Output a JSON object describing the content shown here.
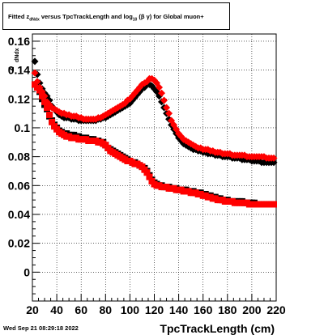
{
  "title": {
    "prefix": "Fitted  z",
    "sub1": "dNdx",
    "middle": " versus TpcTrackLength and log",
    "sub2": "10",
    "suffix": " (β γ) for Global muon+"
  },
  "timestamp": "Wed Sep 21 08:29:18 2022",
  "chart_data": {
    "type": "scatter",
    "title": "Fitted z_dNdx versus TpcTrackLength and log10(β γ) for Global muon+",
    "xlabel": "TpcTrackLength (cm)",
    "ylabel": "z_dNdx",
    "ylabel_main": "z",
    "ylabel_sub": "dNdx",
    "xlim": [
      20,
      220
    ],
    "ylim": [
      -0.02,
      0.165
    ],
    "x_ticks": [
      20,
      40,
      60,
      80,
      100,
      120,
      140,
      160,
      180,
      200,
      220
    ],
    "y_ticks": [
      0,
      0.02,
      0.04,
      0.06,
      0.08,
      0.1,
      0.12,
      0.14,
      0.16
    ],
    "y_tick_labels": [
      "0",
      "0.02",
      "0.04",
      "0.06",
      "0.08",
      "0.1",
      "0.12",
      "0.14",
      "0.16"
    ],
    "grid": true,
    "series": [
      {
        "marker": "diamond",
        "color": "#000000",
        "x": [
          22,
          24,
          26,
          28,
          30,
          32,
          34,
          36,
          38,
          40,
          42,
          44,
          46,
          48,
          50,
          52,
          54,
          56,
          58,
          60,
          62,
          64,
          66,
          68,
          70,
          72,
          74,
          76,
          78,
          80,
          82,
          84,
          86,
          88,
          90,
          92,
          94,
          96,
          98,
          100,
          102,
          104,
          106,
          108,
          110,
          112,
          114,
          116,
          118,
          120,
          122,
          124,
          126,
          128,
          130,
          132,
          134,
          136,
          138,
          140,
          142,
          144,
          146,
          148,
          150,
          152,
          154,
          156,
          158,
          160,
          162,
          164,
          166,
          168,
          170,
          172,
          174,
          176,
          178,
          180,
          182,
          184,
          186,
          188,
          190,
          192,
          194,
          196,
          198,
          200,
          202,
          204,
          206,
          208,
          210,
          212,
          214,
          216,
          218
        ],
        "y": [
          0.146,
          0.137,
          0.131,
          0.127,
          0.124,
          0.122,
          0.119,
          0.115,
          0.113,
          0.111,
          0.109,
          0.108,
          0.107,
          0.107,
          0.107,
          0.106,
          0.106,
          0.106,
          0.105,
          0.105,
          0.105,
          0.105,
          0.105,
          0.105,
          0.105,
          0.105,
          0.106,
          0.106,
          0.107,
          0.107,
          0.108,
          0.109,
          0.11,
          0.111,
          0.112,
          0.113,
          0.114,
          0.115,
          0.116,
          0.117,
          0.119,
          0.121,
          0.123,
          0.125,
          0.127,
          0.128,
          0.13,
          0.13,
          0.129,
          0.127,
          0.125,
          0.122,
          0.118,
          0.114,
          0.11,
          0.106,
          0.102,
          0.099,
          0.096,
          0.093,
          0.091,
          0.089,
          0.088,
          0.087,
          0.086,
          0.085,
          0.085,
          0.084,
          0.084,
          0.083,
          0.083,
          0.082,
          0.082,
          0.082,
          0.081,
          0.081,
          0.081,
          0.08,
          0.08,
          0.08,
          0.08,
          0.079,
          0.079,
          0.079,
          0.079,
          0.078,
          0.078,
          0.078,
          0.078,
          0.077,
          0.077,
          0.077,
          0.077,
          0.076,
          0.076,
          0.076,
          0.076,
          0.076,
          0.076
        ]
      },
      {
        "marker": "diamond",
        "color": "#ff0000",
        "x": [
          22,
          24,
          26,
          28,
          30,
          32,
          34,
          36,
          38,
          40,
          42,
          44,
          46,
          48,
          50,
          52,
          54,
          56,
          58,
          60,
          62,
          64,
          66,
          68,
          70,
          72,
          74,
          76,
          78,
          80,
          82,
          84,
          86,
          88,
          90,
          92,
          94,
          96,
          98,
          100,
          102,
          104,
          106,
          108,
          110,
          112,
          114,
          116,
          118,
          120,
          122,
          124,
          126,
          128,
          130,
          132,
          134,
          136,
          138,
          140,
          142,
          144,
          146,
          148,
          150,
          152,
          154,
          156,
          158,
          160,
          162,
          164,
          166,
          168,
          170,
          172,
          174,
          176,
          178,
          180,
          182,
          184,
          186,
          188,
          190,
          192,
          194,
          196,
          198,
          200,
          202,
          204,
          206,
          208,
          210,
          212,
          214,
          216,
          218
        ],
        "y": [
          0.138,
          0.132,
          0.128,
          0.125,
          0.122,
          0.118,
          0.116,
          0.114,
          0.113,
          0.112,
          0.111,
          0.11,
          0.11,
          0.109,
          0.109,
          0.108,
          0.108,
          0.108,
          0.107,
          0.107,
          0.106,
          0.106,
          0.106,
          0.106,
          0.106,
          0.106,
          0.107,
          0.107,
          0.108,
          0.109,
          0.11,
          0.111,
          0.112,
          0.113,
          0.114,
          0.115,
          0.116,
          0.117,
          0.119,
          0.12,
          0.122,
          0.124,
          0.126,
          0.128,
          0.13,
          0.131,
          0.132,
          0.134,
          0.134,
          0.133,
          0.131,
          0.128,
          0.124,
          0.119,
          0.114,
          0.11,
          0.105,
          0.102,
          0.099,
          0.096,
          0.094,
          0.092,
          0.091,
          0.09,
          0.089,
          0.088,
          0.087,
          0.086,
          0.086,
          0.085,
          0.085,
          0.085,
          0.084,
          0.084,
          0.083,
          0.083,
          0.083,
          0.082,
          0.082,
          0.082,
          0.082,
          0.081,
          0.081,
          0.081,
          0.081,
          0.081,
          0.081,
          0.08,
          0.08,
          0.08,
          0.08,
          0.08,
          0.08,
          0.08,
          0.08,
          0.079,
          0.079,
          0.079,
          0.079
        ]
      },
      {
        "marker": "square",
        "color": "#000000",
        "x": [
          22,
          24,
          26,
          28,
          30,
          32,
          34,
          36,
          38,
          40,
          42,
          44,
          46,
          48,
          50,
          52,
          54,
          56,
          58,
          60,
          62,
          64,
          66,
          68,
          70,
          72,
          74,
          76,
          78,
          80,
          82,
          84,
          86,
          88,
          90,
          92,
          94,
          96,
          98,
          100,
          102,
          104,
          106,
          108,
          110,
          112,
          114,
          116,
          118,
          120,
          122,
          124,
          126,
          128,
          130,
          132,
          134,
          136,
          138,
          140,
          142,
          144,
          146,
          148,
          150,
          152,
          154,
          156,
          158,
          160,
          162,
          164,
          166,
          168,
          170,
          172,
          174,
          176,
          178,
          180,
          182,
          184,
          186,
          188,
          190,
          192,
          194,
          196,
          198,
          200,
          202,
          204,
          206,
          208,
          210,
          212,
          214,
          216,
          218
        ],
        "y": [
          0.13,
          0.128,
          0.125,
          0.12,
          0.116,
          0.113,
          0.108,
          0.105,
          0.102,
          0.1,
          0.098,
          0.097,
          0.096,
          0.096,
          0.095,
          0.095,
          0.095,
          0.094,
          0.094,
          0.093,
          0.093,
          0.093,
          0.092,
          0.092,
          0.092,
          0.091,
          0.091,
          0.09,
          0.09,
          0.088,
          0.086,
          0.085,
          0.084,
          0.083,
          0.082,
          0.081,
          0.08,
          0.079,
          0.078,
          0.077,
          0.076,
          0.076,
          0.075,
          0.074,
          0.073,
          0.072,
          0.07,
          0.067,
          0.064,
          0.062,
          0.061,
          0.06,
          0.06,
          0.059,
          0.059,
          0.059,
          0.058,
          0.058,
          0.058,
          0.057,
          0.057,
          0.057,
          0.057,
          0.056,
          0.056,
          0.056,
          0.055,
          0.055,
          0.055,
          0.054,
          0.054,
          0.053,
          0.053,
          0.052,
          0.052,
          0.051,
          0.051,
          0.05,
          0.05,
          0.05,
          0.049,
          0.049,
          0.049,
          0.049,
          0.049,
          0.049,
          0.048,
          0.048,
          0.048,
          0.048,
          0.048,
          0.047,
          0.047,
          0.047,
          0.047,
          0.047,
          0.047,
          0.047,
          0.047
        ]
      },
      {
        "marker": "square",
        "color": "#ff0000",
        "x": [
          22,
          24,
          26,
          28,
          30,
          32,
          34,
          36,
          38,
          40,
          42,
          44,
          46,
          48,
          50,
          52,
          54,
          56,
          58,
          60,
          62,
          64,
          66,
          68,
          70,
          72,
          74,
          76,
          78,
          80,
          82,
          84,
          86,
          88,
          90,
          92,
          94,
          96,
          98,
          100,
          102,
          104,
          106,
          108,
          110,
          112,
          114,
          116,
          118,
          120,
          122,
          124,
          126,
          128,
          130,
          132,
          134,
          136,
          138,
          140,
          142,
          144,
          146,
          148,
          150,
          152,
          154,
          156,
          158,
          160,
          162,
          164,
          166,
          168,
          170,
          172,
          174,
          176,
          178,
          180,
          182,
          184,
          186,
          188,
          190,
          192,
          194,
          196,
          198,
          200,
          202,
          204,
          206,
          208,
          210,
          212,
          214,
          216,
          218
        ],
        "y": [
          0.13,
          0.128,
          0.126,
          0.122,
          0.118,
          0.114,
          0.109,
          0.104,
          0.101,
          0.099,
          0.097,
          0.096,
          0.095,
          0.094,
          0.094,
          0.093,
          0.093,
          0.093,
          0.092,
          0.092,
          0.092,
          0.092,
          0.091,
          0.091,
          0.091,
          0.091,
          0.09,
          0.09,
          0.089,
          0.088,
          0.086,
          0.084,
          0.083,
          0.082,
          0.081,
          0.08,
          0.079,
          0.078,
          0.077,
          0.077,
          0.076,
          0.075,
          0.075,
          0.074,
          0.073,
          0.071,
          0.069,
          0.066,
          0.063,
          0.061,
          0.06,
          0.06,
          0.059,
          0.059,
          0.059,
          0.058,
          0.058,
          0.058,
          0.057,
          0.057,
          0.057,
          0.056,
          0.056,
          0.056,
          0.055,
          0.055,
          0.055,
          0.054,
          0.054,
          0.053,
          0.053,
          0.052,
          0.052,
          0.051,
          0.051,
          0.05,
          0.05,
          0.05,
          0.049,
          0.049,
          0.049,
          0.049,
          0.048,
          0.048,
          0.048,
          0.048,
          0.048,
          0.048,
          0.047,
          0.047,
          0.047,
          0.047,
          0.047,
          0.047,
          0.047,
          0.047,
          0.047,
          0.047,
          0.047
        ]
      }
    ]
  }
}
